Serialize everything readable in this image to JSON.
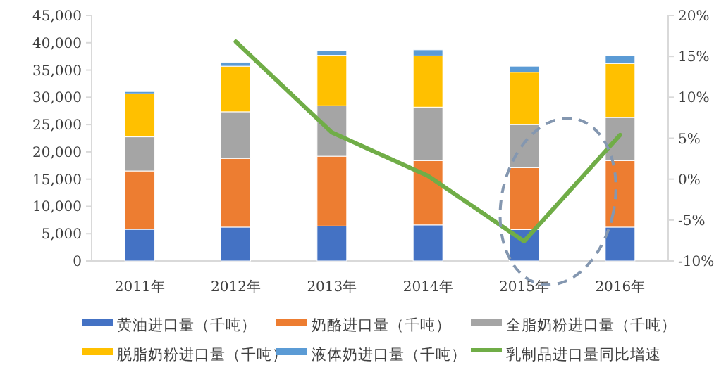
{
  "chart_data": {
    "type": "bar",
    "stacked": true,
    "legend": "bottom",
    "categories": [
      "2011年",
      "2012年",
      "2013年",
      "2014年",
      "2015年",
      "2016年"
    ],
    "series": [
      {
        "name": "黄油进口量（千吨）",
        "color": "#4472c4",
        "values": [
          5800,
          6200,
          6400,
          6600,
          5750,
          6200
        ]
      },
      {
        "name": "奶酪进口量（千吨）",
        "color": "#ed7d31",
        "values": [
          10700,
          12600,
          12800,
          11800,
          11350,
          12200
        ]
      },
      {
        "name": "全脂奶粉进口量（千吨）",
        "color": "#a5a5a5",
        "values": [
          6250,
          8550,
          9250,
          9800,
          7900,
          7900
        ]
      },
      {
        "name": "脱脂奶粉进口量（千吨）",
        "color": "#ffc000",
        "values": [
          7900,
          8350,
          9250,
          9400,
          9600,
          9900
        ]
      },
      {
        "name": "液体奶进口量（千吨）",
        "color": "#5b9bd5",
        "values": [
          400,
          700,
          800,
          1100,
          1100,
          1400
        ]
      },
      {
        "name": "乳制品进口量同比增速",
        "color": "#70ad47",
        "type": "line",
        "axis": "y2",
        "values": [
          null,
          16.8,
          5.7,
          0.4,
          -7.6,
          5.4
        ]
      }
    ],
    "ylim": [
      0,
      45000
    ],
    "yticks": [
      {
        "value": 0,
        "label": "0"
      },
      {
        "value": 5000,
        "label": "5,000"
      },
      {
        "value": 10000,
        "label": "10,000"
      },
      {
        "value": 15000,
        "label": "15,000"
      },
      {
        "value": 20000,
        "label": "20,000"
      },
      {
        "value": 25000,
        "label": "25,000"
      },
      {
        "value": 30000,
        "label": "30,000"
      },
      {
        "value": 35000,
        "label": "35,000"
      },
      {
        "value": 40000,
        "label": "40,000"
      },
      {
        "value": 45000,
        "label": "45,000"
      }
    ],
    "y2lim": [
      -10,
      20
    ],
    "y2ticks": [
      {
        "value": -10,
        "label": "-10%"
      },
      {
        "value": -5,
        "label": "-5%"
      },
      {
        "value": 0,
        "label": "0%"
      },
      {
        "value": 5,
        "label": "5%"
      },
      {
        "value": 10,
        "label": "10%"
      },
      {
        "value": 15,
        "label": "15%"
      },
      {
        "value": 20,
        "label": "20%"
      }
    ]
  }
}
